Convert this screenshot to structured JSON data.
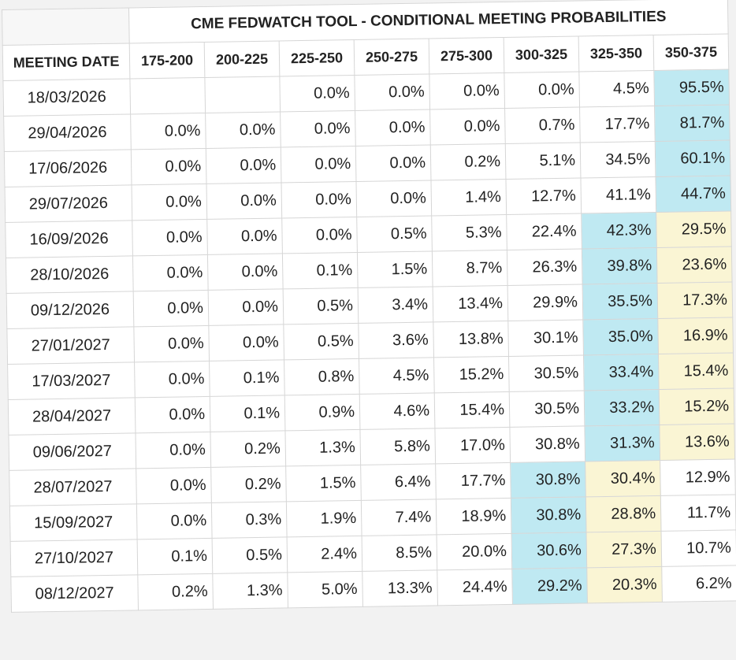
{
  "title": "CME FEDWATCH TOOL - CONDITIONAL MEETING PROBABILITIES",
  "meeting_date_label": "MEETING DATE",
  "ranges": [
    "175-200",
    "200-225",
    "225-250",
    "250-275",
    "275-300",
    "300-325",
    "325-350",
    "350-375"
  ],
  "colors": {
    "highest": "#bfe9f2",
    "second": "#faf5d4"
  },
  "rows": [
    {
      "date": "18/03/2026",
      "values": [
        "",
        "",
        "0.0%",
        "0.0%",
        "0.0%",
        "0.0%",
        "4.5%",
        "95.5%"
      ],
      "blue": 7,
      "yellow": -1
    },
    {
      "date": "29/04/2026",
      "values": [
        "0.0%",
        "0.0%",
        "0.0%",
        "0.0%",
        "0.0%",
        "0.7%",
        "17.7%",
        "81.7%"
      ],
      "blue": 7,
      "yellow": -1
    },
    {
      "date": "17/06/2026",
      "values": [
        "0.0%",
        "0.0%",
        "0.0%",
        "0.0%",
        "0.2%",
        "5.1%",
        "34.5%",
        "60.1%"
      ],
      "blue": 7,
      "yellow": -1
    },
    {
      "date": "29/07/2026",
      "values": [
        "0.0%",
        "0.0%",
        "0.0%",
        "0.0%",
        "1.4%",
        "12.7%",
        "41.1%",
        "44.7%"
      ],
      "blue": 7,
      "yellow": -1
    },
    {
      "date": "16/09/2026",
      "values": [
        "0.0%",
        "0.0%",
        "0.0%",
        "0.5%",
        "5.3%",
        "22.4%",
        "42.3%",
        "29.5%"
      ],
      "blue": 6,
      "yellow": 7
    },
    {
      "date": "28/10/2026",
      "values": [
        "0.0%",
        "0.0%",
        "0.1%",
        "1.5%",
        "8.7%",
        "26.3%",
        "39.8%",
        "23.6%"
      ],
      "blue": 6,
      "yellow": 7
    },
    {
      "date": "09/12/2026",
      "values": [
        "0.0%",
        "0.0%",
        "0.5%",
        "3.4%",
        "13.4%",
        "29.9%",
        "35.5%",
        "17.3%"
      ],
      "blue": 6,
      "yellow": 7
    },
    {
      "date": "27/01/2027",
      "values": [
        "0.0%",
        "0.0%",
        "0.5%",
        "3.6%",
        "13.8%",
        "30.1%",
        "35.0%",
        "16.9%"
      ],
      "blue": 6,
      "yellow": 7
    },
    {
      "date": "17/03/2027",
      "values": [
        "0.0%",
        "0.1%",
        "0.8%",
        "4.5%",
        "15.2%",
        "30.5%",
        "33.4%",
        "15.4%"
      ],
      "blue": 6,
      "yellow": 7
    },
    {
      "date": "28/04/2027",
      "values": [
        "0.0%",
        "0.1%",
        "0.9%",
        "4.6%",
        "15.4%",
        "30.5%",
        "33.2%",
        "15.2%"
      ],
      "blue": 6,
      "yellow": 7
    },
    {
      "date": "09/06/2027",
      "values": [
        "0.0%",
        "0.2%",
        "1.3%",
        "5.8%",
        "17.0%",
        "30.8%",
        "31.3%",
        "13.6%"
      ],
      "blue": 6,
      "yellow": 7
    },
    {
      "date": "28/07/2027",
      "values": [
        "0.0%",
        "0.2%",
        "1.5%",
        "6.4%",
        "17.7%",
        "30.8%",
        "30.4%",
        "12.9%"
      ],
      "blue": 5,
      "yellow": 6
    },
    {
      "date": "15/09/2027",
      "values": [
        "0.0%",
        "0.3%",
        "1.9%",
        "7.4%",
        "18.9%",
        "30.8%",
        "28.8%",
        "11.7%"
      ],
      "blue": 5,
      "yellow": 6
    },
    {
      "date": "27/10/2027",
      "values": [
        "0.1%",
        "0.5%",
        "2.4%",
        "8.5%",
        "20.0%",
        "30.6%",
        "27.3%",
        "10.7%"
      ],
      "blue": 5,
      "yellow": 6
    },
    {
      "date": "08/12/2027",
      "values": [
        "0.2%",
        "1.3%",
        "5.0%",
        "13.3%",
        "24.4%",
        "29.2%",
        "20.3%",
        "6.2%"
      ],
      "blue": 5,
      "yellow": 6
    }
  ]
}
